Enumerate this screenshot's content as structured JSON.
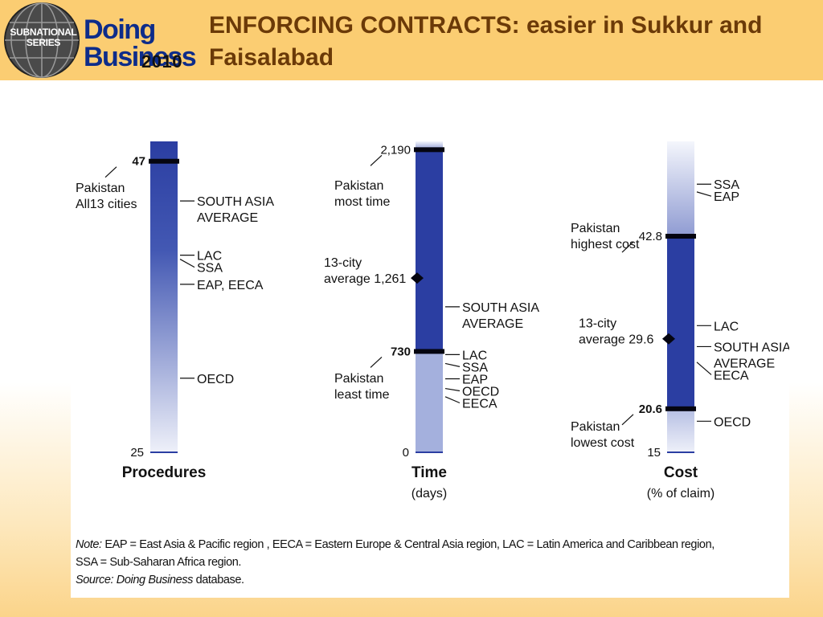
{
  "header": {
    "title": "ENFORCING CONTRACTS: easier in Sukkur and Faisalabad",
    "logo_badge_line1": "SUBNATIONAL",
    "logo_badge_line2": "SERIES",
    "logo_word1": "Doing",
    "logo_word2": "Business",
    "logo_year": "2010"
  },
  "colors": {
    "bar_dark": "#2b3ea2",
    "bar_light": "#a4b0dd",
    "header_bg": "#fbcd72",
    "title": "#6b3a08",
    "value_text": "#10186b"
  },
  "chart_data": [
    {
      "type": "bar",
      "ylim": [
        25,
        48.5
      ],
      "xlabel": "Procedures",
      "unit": "",
      "tick_min_label": "25",
      "pakistan_marker": {
        "value": 47,
        "label": "47",
        "caption": [
          "Pakistan",
          "All13 cities"
        ]
      },
      "regions": [
        {
          "name": "SOUTH ASIA AVERAGE",
          "lines": [
            "SOUTH ASIA",
            "AVERAGE"
          ],
          "value": 44
        },
        {
          "name": "LAC",
          "lines": [
            "LAC"
          ],
          "value": 39.9
        },
        {
          "name": "SSA",
          "lines": [
            "SSA"
          ],
          "value": 39.6
        },
        {
          "name": "EAP, EECA",
          "lines": [
            "EAP, EECA"
          ],
          "value": 37.7
        },
        {
          "name": "OECD",
          "lines": [
            "OECD"
          ],
          "value": 30.6
        }
      ]
    },
    {
      "type": "bar",
      "ylim": [
        0,
        2250
      ],
      "xlabel": "Time",
      "unit": "(days)",
      "tick_min_label": "0",
      "pakistan_high": {
        "value": 2190,
        "label": "2,190",
        "caption": [
          "Pakistan",
          "most time"
        ]
      },
      "pakistan_low": {
        "value": 730,
        "label": "730",
        "caption": [
          "Pakistan",
          "least time"
        ]
      },
      "average": {
        "value": 1261,
        "label": "1,261",
        "caption": [
          "13-city",
          "average"
        ]
      },
      "regions": [
        {
          "name": "SOUTH ASIA AVERAGE",
          "lines": [
            "SOUTH ASIA",
            "AVERAGE"
          ],
          "value": 1053
        },
        {
          "name": "LAC",
          "lines": [
            "LAC"
          ],
          "value": 707
        },
        {
          "name": "SSA",
          "lines": [
            "SSA"
          ],
          "value": 643
        },
        {
          "name": "EAP",
          "lines": [
            "EAP"
          ],
          "value": 532
        },
        {
          "name": "OECD",
          "lines": [
            "OECD"
          ],
          "value": 462
        },
        {
          "name": "EECA",
          "lines": [
            "EECA"
          ],
          "value": 402
        }
      ]
    },
    {
      "type": "bar",
      "ylim": [
        15,
        55
      ],
      "xlabel": "Cost",
      "unit": "(% of claim)",
      "tick_min_label": "15",
      "pakistan_high": {
        "value": 42.8,
        "label": "42.8",
        "caption": [
          "Pakistan",
          "highest cost"
        ]
      },
      "pakistan_low": {
        "value": 20.6,
        "label": "20.6",
        "caption": [
          "Pakistan",
          "lowest cost"
        ]
      },
      "average": {
        "value": 29.6,
        "label": "29.6",
        "caption": [
          "13-city",
          "average"
        ]
      },
      "regions": [
        {
          "name": "SSA",
          "lines": [
            "SSA"
          ],
          "value": 49.5
        },
        {
          "name": "EAP",
          "lines": [
            "EAP"
          ],
          "value": 48.5
        },
        {
          "name": "LAC",
          "lines": [
            "LAC"
          ],
          "value": 31.3
        },
        {
          "name": "SOUTH ASIA AVERAGE",
          "lines": [
            "SOUTH ASIA",
            "AVERAGE"
          ],
          "value": 28.6
        },
        {
          "name": "EECA",
          "lines": [
            "EECA"
          ],
          "value": 26.6
        },
        {
          "name": "OECD",
          "lines": [
            "OECD"
          ],
          "value": 19.0
        }
      ]
    }
  ],
  "footnote": {
    "note_label": "Note:",
    "note_line1": "EAP = East Asia & Pacific region , EECA = Eastern Europe & Central Asia region, LAC = Latin America and Caribbean region,",
    "note_line2": "SSA = Sub-Saharan Africa region.",
    "source_label": "Source: Doing Business",
    "source_rest": " database."
  }
}
